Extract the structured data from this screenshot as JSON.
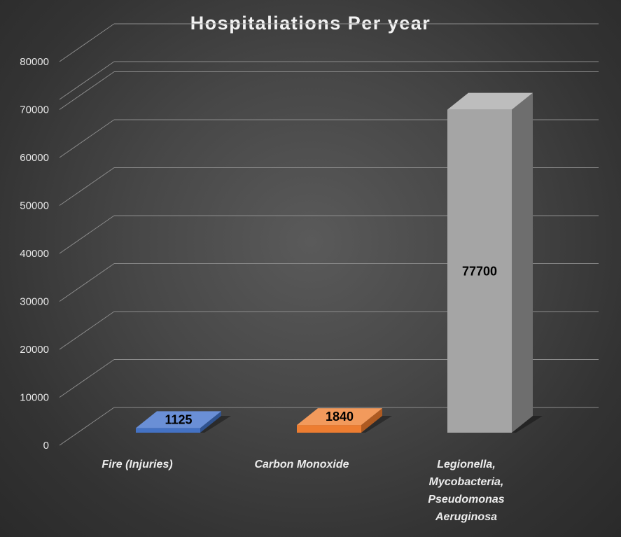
{
  "chart_data": {
    "type": "bar",
    "title": "Hospitaliations Per year",
    "categories": [
      [
        "Fire (Injuries)"
      ],
      [
        "Carbon Monoxide"
      ],
      [
        "Legionella,",
        "Mycobacteria,",
        "Pseudomonas",
        "Aeruginosa"
      ]
    ],
    "values": [
      1125,
      1840,
      77700
    ],
    "data_labels": [
      "1125",
      "1840",
      "77700"
    ],
    "ylim": [
      0,
      80000
    ],
    "yticks": [
      0,
      10000,
      20000,
      30000,
      40000,
      50000,
      60000,
      70000,
      80000
    ],
    "grid": true,
    "legend": "none",
    "colors": {
      "bar_front": [
        "#4472c4",
        "#ed7d31",
        "#a5a5a5"
      ],
      "bar_top": [
        "#6a8fd6",
        "#f29a5c",
        "#bdbdbd"
      ],
      "bar_side": [
        "#2f528f",
        "#ae5a21",
        "#6e6e6e"
      ],
      "gridline": "#8c8c8c",
      "text": "#e6e6e6"
    }
  }
}
